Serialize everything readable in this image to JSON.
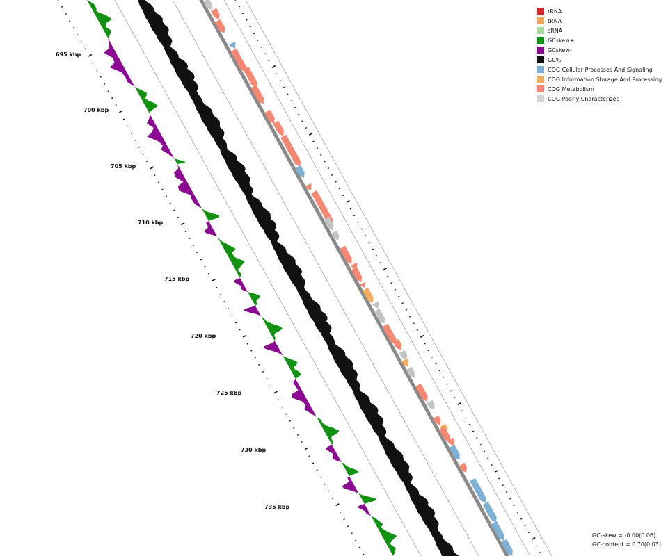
{
  "legend": [
    {
      "label": "rRNA",
      "color": "#d62728",
      "icon": "rrna-swatch"
    },
    {
      "label": "tRNA",
      "color": "#f5a95c",
      "icon": "trna-swatch"
    },
    {
      "label": "sRNA",
      "color": "#a6d99a",
      "icon": "srna-swatch"
    },
    {
      "label": "GCskew+",
      "color": "#119211",
      "icon": "gcskew-plus-swatch"
    },
    {
      "label": "GCskew-",
      "color": "#8c0a93",
      "icon": "gcskew-minus-swatch"
    },
    {
      "label": "GC%",
      "color": "#111111",
      "icon": "gc-percent-swatch"
    },
    {
      "label": "COG Cellular Processes And Signaling",
      "color": "#7fb0d6",
      "icon": "cog-cellular-swatch"
    },
    {
      "label": "COG Information Storage And Processing",
      "color": "#f5ad62",
      "icon": "cog-information-swatch"
    },
    {
      "label": "COG Metabolism",
      "color": "#f58873",
      "icon": "cog-metabolism-swatch"
    },
    {
      "label": "COG Poorly Characterized",
      "color": "#d5d5d5",
      "icon": "cog-poorly-swatch"
    }
  ],
  "axis": {
    "tick_labels": [
      "695 kbp",
      "700 kbp",
      "705 kbp",
      "710 kbp",
      "715 kbp",
      "720 kbp",
      "725 kbp",
      "730 kbp",
      "735 kbp"
    ]
  },
  "stats": {
    "gc_skew": "GC-skew = -0.00(0.06)",
    "gc_content": "GC-content = 0.70(0.03)"
  }
}
